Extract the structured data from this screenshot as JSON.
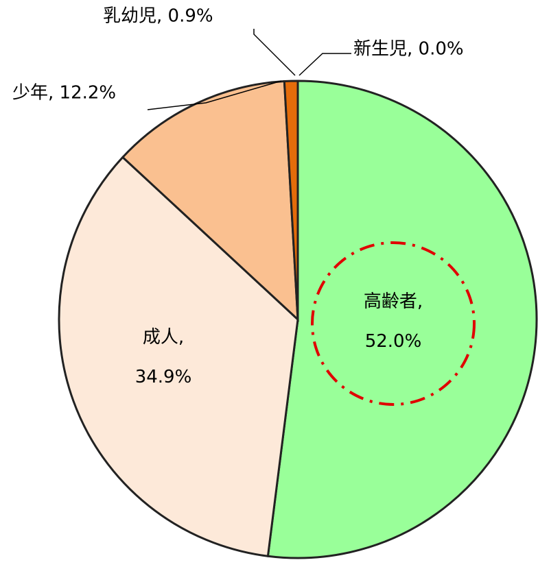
{
  "chart_data": {
    "type": "pie",
    "values": [
      52.0,
      34.9,
      12.2,
      0.9,
      0.0
    ],
    "value_labels": [
      "高齢者, 52.0%",
      "成人, 34.9%",
      "少年, 12.2%",
      "乳幼児, 0.9%",
      "新生児, 0.0%"
    ],
    "colors": [
      "#99ff99",
      "#fde9d9",
      "#fac090",
      "#e46c0a",
      "#4f81bd"
    ]
  }
}
